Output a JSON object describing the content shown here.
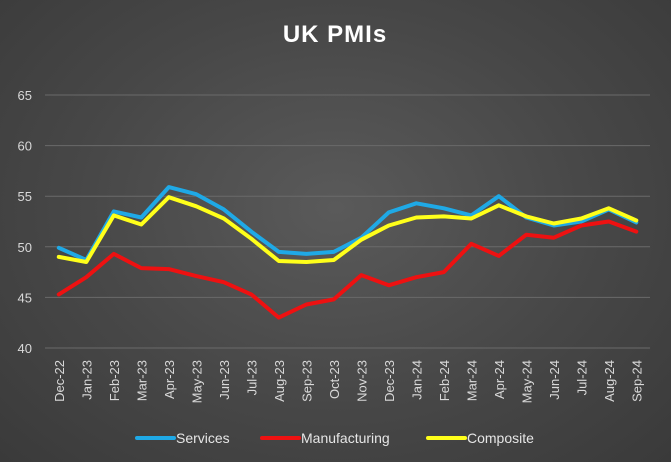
{
  "chart_data": {
    "type": "line",
    "title": "UK PMIs",
    "xlabel": "",
    "ylabel": "",
    "ylim": [
      40,
      65
    ],
    "yticks": [
      40,
      45,
      50,
      55,
      60,
      65
    ],
    "grid": true,
    "legend": "bottom",
    "categories": [
      "Dec-22",
      "Jan-23",
      "Feb-23",
      "Mar-23",
      "Apr-23",
      "May-23",
      "Jun-23",
      "Jul-23",
      "Aug-23",
      "Sep-23",
      "Oct-23",
      "Nov-23",
      "Dec-23",
      "Jan-24",
      "Feb-24",
      "Mar-24",
      "Apr-24",
      "May-24",
      "Jun-24",
      "Jul-24",
      "Aug-24",
      "Sep-24"
    ],
    "series": [
      {
        "name": "Services",
        "color": "#1fa9e6",
        "values": [
          49.9,
          48.7,
          53.5,
          52.9,
          55.9,
          55.2,
          53.7,
          51.5,
          49.5,
          49.3,
          49.5,
          50.9,
          53.4,
          54.3,
          53.8,
          53.1,
          55.0,
          52.9,
          52.1,
          52.5,
          53.7,
          52.4
        ]
      },
      {
        "name": "Manufacturing",
        "color": "#ee1111",
        "values": [
          45.3,
          47.0,
          49.3,
          47.9,
          47.8,
          47.1,
          46.5,
          45.3,
          43.0,
          44.3,
          44.8,
          47.2,
          46.2,
          47.0,
          47.5,
          50.3,
          49.1,
          51.2,
          50.9,
          52.1,
          52.5,
          51.5
        ]
      },
      {
        "name": "Composite",
        "color": "#ffff1a",
        "values": [
          49.0,
          48.5,
          53.1,
          52.2,
          54.9,
          54.0,
          52.8,
          50.8,
          48.6,
          48.5,
          48.7,
          50.7,
          52.1,
          52.9,
          53.0,
          52.8,
          54.1,
          53.0,
          52.3,
          52.8,
          53.8,
          52.6
        ]
      }
    ]
  }
}
